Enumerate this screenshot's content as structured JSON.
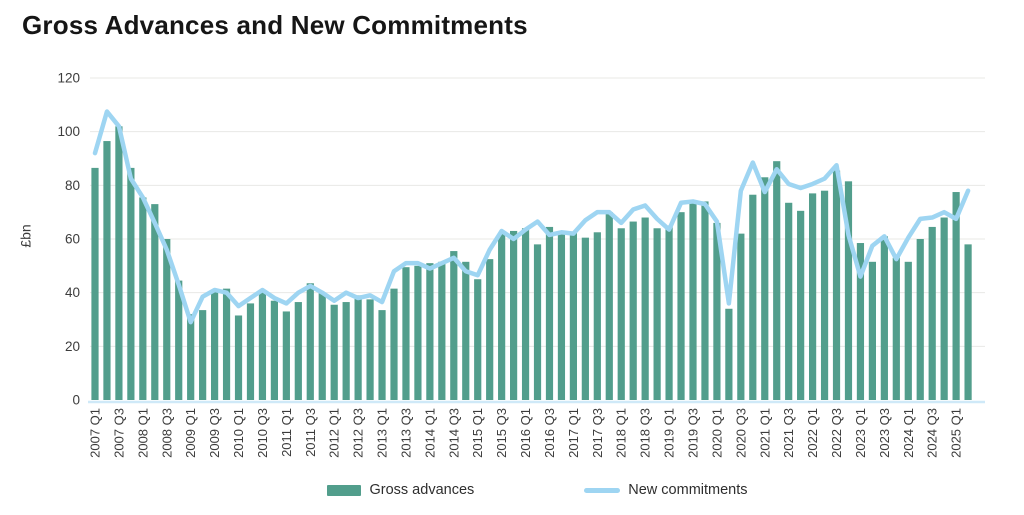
{
  "title": "Gross Advances and New Commitments",
  "y_axis": {
    "label": "£bn",
    "ticks": [
      0,
      20,
      40,
      60,
      80,
      100,
      120
    ]
  },
  "x_axis": {
    "tick_every": 2,
    "first_label": "2007 Q1",
    "last_label": "2025 Q1"
  },
  "legend": {
    "items": [
      {
        "label": "Gross advances",
        "type": "bar"
      },
      {
        "label": "New commitments",
        "type": "line"
      }
    ]
  },
  "colors": {
    "bar": "#529E8C",
    "line": "#9ED5F2",
    "grid": "#E8E8E6",
    "axis_line": "#CFE9F8",
    "tick_text": "#3C3C3C",
    "title_text": "#161616"
  },
  "chart_data": {
    "type": "bar",
    "subtype": "bar-and-line-combo",
    "title": "Gross Advances and New Commitments",
    "xlabel": "",
    "ylabel": "£bn",
    "ylim": [
      0,
      120
    ],
    "grid": true,
    "legend_position": "bottom",
    "x_tick_interval": 2,
    "categories": [
      "2007 Q1",
      "2007 Q2",
      "2007 Q3",
      "2007 Q4",
      "2008 Q1",
      "2008 Q2",
      "2008 Q3",
      "2008 Q4",
      "2009 Q1",
      "2009 Q2",
      "2009 Q3",
      "2009 Q4",
      "2010 Q1",
      "2010 Q2",
      "2010 Q3",
      "2010 Q4",
      "2011 Q1",
      "2011 Q2",
      "2011 Q3",
      "2011 Q4",
      "2012 Q1",
      "2012 Q2",
      "2012 Q3",
      "2012 Q4",
      "2013 Q1",
      "2013 Q2",
      "2013 Q3",
      "2013 Q4",
      "2014 Q1",
      "2014 Q2",
      "2014 Q3",
      "2014 Q4",
      "2015 Q1",
      "2015 Q2",
      "2015 Q3",
      "2015 Q4",
      "2016 Q1",
      "2016 Q2",
      "2016 Q3",
      "2016 Q4",
      "2017 Q1",
      "2017 Q2",
      "2017 Q3",
      "2017 Q4",
      "2018 Q1",
      "2018 Q2",
      "2018 Q3",
      "2018 Q4",
      "2019 Q1",
      "2019 Q2",
      "2019 Q3",
      "2019 Q4",
      "2020 Q1",
      "2020 Q2",
      "2020 Q3",
      "2020 Q4",
      "2021 Q1",
      "2021 Q2",
      "2021 Q3",
      "2021 Q4",
      "2022 Q1",
      "2022 Q2",
      "2022 Q3",
      "2022 Q4",
      "2023 Q1",
      "2023 Q2",
      "2023 Q3",
      "2023 Q4",
      "2024 Q1",
      "2024 Q2",
      "2024 Q3",
      "2024 Q4",
      "2025 Q1",
      "2025 Q2"
    ],
    "series": [
      {
        "name": "Gross advances",
        "type": "bar",
        "color": "#529E8C",
        "values": [
          86.5,
          96.5,
          102,
          86.5,
          75.5,
          73,
          60,
          44.5,
          32,
          33.5,
          41,
          41.5,
          31.5,
          36,
          41,
          37,
          33,
          36.5,
          43.5,
          40,
          35.5,
          36.5,
          39,
          37.5,
          33.5,
          41.5,
          49.5,
          50,
          51,
          51.5,
          55.5,
          51.5,
          45,
          52.5,
          62,
          63,
          64,
          58,
          64.5,
          62.5,
          62.5,
          60.5,
          62.5,
          70,
          64,
          66.5,
          68,
          64,
          65,
          70,
          73.5,
          74,
          66,
          34,
          62,
          76.5,
          83,
          89,
          73.5,
          70.5,
          77,
          78,
          85.5,
          81.5,
          58.5,
          51.5,
          61,
          53,
          51.5,
          60,
          64.5,
          68,
          77.5,
          58
        ]
      },
      {
        "name": "New commitments",
        "type": "line",
        "color": "#9ED5F2",
        "values": [
          92,
          107.5,
          102,
          82.5,
          75.5,
          66,
          56,
          43,
          29,
          38.5,
          41,
          40,
          35,
          38,
          41,
          38,
          36,
          40,
          42.5,
          40,
          37,
          40,
          38,
          39,
          36.5,
          48,
          51,
          51,
          49,
          51,
          53,
          48,
          46.5,
          56,
          63,
          60,
          63.5,
          66.5,
          61.5,
          62.5,
          62,
          67,
          70,
          70,
          66,
          71,
          72.5,
          67.5,
          63.5,
          73.5,
          74,
          73,
          66.5,
          36,
          78,
          88.5,
          77.5,
          86,
          80.5,
          79,
          80.5,
          82.5,
          87.5,
          61.5,
          46,
          57.5,
          61,
          52.5,
          60.5,
          67.5,
          68,
          70,
          67.5,
          78
        ]
      }
    ]
  }
}
